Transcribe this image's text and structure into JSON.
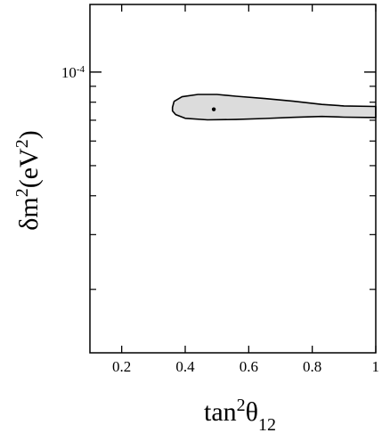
{
  "chart_data": {
    "type": "contour",
    "title": "",
    "xlabel": {
      "base": "tan",
      "sup": "2",
      "greek": "θ",
      "sub": "12"
    },
    "ylabel": {
      "greek": "δ",
      "base": "m",
      "sup": "2",
      "unit_open": "(eV",
      "unit_sup": "2",
      "unit_close": ")"
    },
    "xlim": [
      0.1,
      1.0
    ],
    "x_ticks": [
      0.2,
      0.4,
      0.6,
      0.8,
      1.0
    ],
    "x_tick_labels": [
      "0.2",
      "0.4",
      "0.6",
      "0.8",
      "1"
    ],
    "y_scale": "log",
    "ylim": [
      1.25e-05,
      0.000165
    ],
    "y_major_ticks": [
      0.0001
    ],
    "y_major_tick_labels": [
      {
        "base": "10",
        "exp": "-4"
      }
    ],
    "y_minor_ticks": [
      2e-05,
      3e-05,
      4e-05,
      5e-05,
      6e-05,
      7e-05,
      8e-05,
      9e-05
    ],
    "grid": false,
    "region": {
      "fill": "#dcdcdc",
      "stroke": "#000000",
      "points": [
        [
          0.36,
          7.7e-05
        ],
        [
          0.365,
          8.05e-05
        ],
        [
          0.39,
          8.33e-05
        ],
        [
          0.44,
          8.47e-05
        ],
        [
          0.5,
          8.47e-05
        ],
        [
          0.56,
          8.36e-05
        ],
        [
          0.65,
          8.22e-05
        ],
        [
          0.74,
          8.06e-05
        ],
        [
          0.83,
          7.87e-05
        ],
        [
          0.9,
          7.78e-05
        ],
        [
          1.0,
          7.75e-05
        ],
        [
          1.0,
          7.14e-05
        ],
        [
          0.9,
          7.16e-05
        ],
        [
          0.83,
          7.2e-05
        ],
        [
          0.74,
          7.15e-05
        ],
        [
          0.65,
          7.09e-05
        ],
        [
          0.56,
          7.04e-05
        ],
        [
          0.47,
          7.02e-05
        ],
        [
          0.4,
          7.1e-05
        ],
        [
          0.37,
          7.3e-05
        ],
        [
          0.36,
          7.5e-05
        ]
      ]
    },
    "best_fit": {
      "x": 0.49,
      "y": 7.59e-05,
      "color": "#000000"
    }
  }
}
